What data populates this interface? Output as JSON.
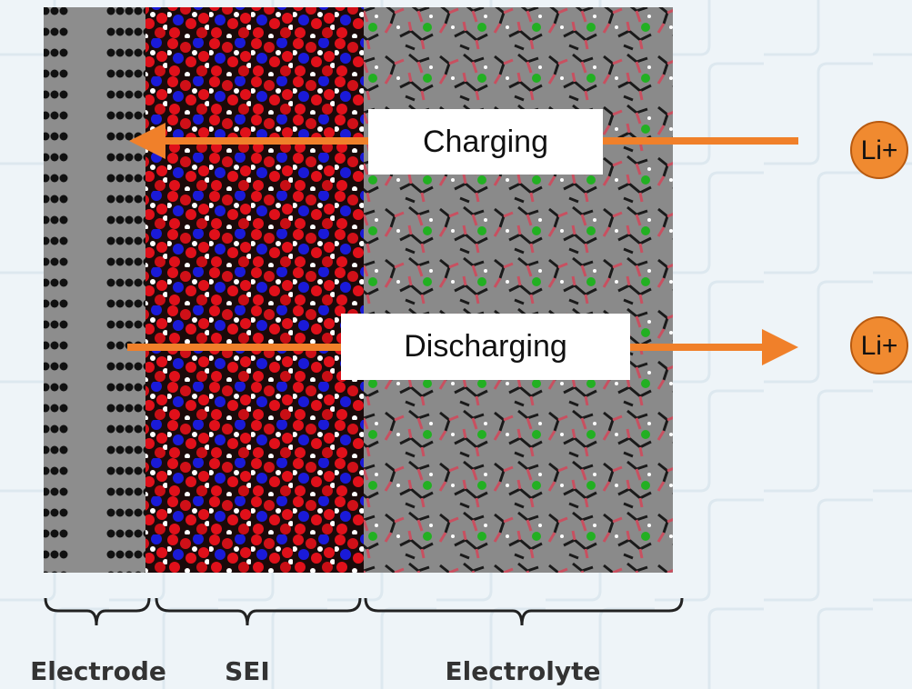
{
  "arrows": [
    {
      "label": "Charging",
      "ion": "Li+"
    },
    {
      "label": "Discharging",
      "ion": "Li+"
    }
  ],
  "regions": [
    "Electrode",
    "SEI",
    "Electrolyte"
  ]
}
